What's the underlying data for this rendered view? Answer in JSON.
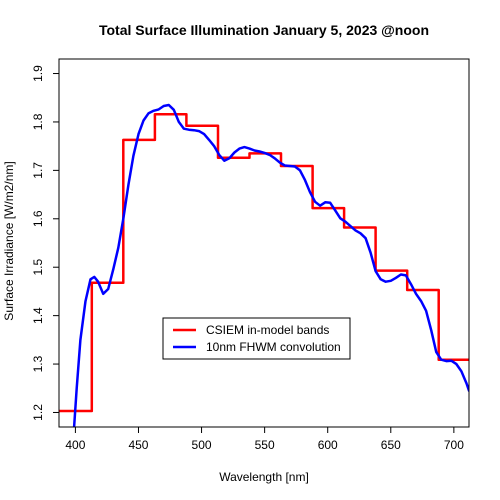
{
  "chart_data": {
    "type": "line",
    "title": "Total Surface Illumination January 5, 2023 @noon",
    "xlabel": "Wavelength [nm]",
    "ylabel": "Surface Irradiance [W/m2/nm]",
    "xlim": [
      387,
      712
    ],
    "ylim": [
      1.17,
      1.93
    ],
    "xticks": [
      400,
      450,
      500,
      550,
      600,
      650,
      700
    ],
    "yticks": [
      1.2,
      1.3,
      1.4,
      1.5,
      1.6,
      1.7,
      1.8,
      1.9
    ],
    "grid": false,
    "legend_position": "center-bottom",
    "series": [
      {
        "name": "CSIEM in-model bands",
        "color": "#ff0000",
        "style": "step",
        "x": [
          387,
          413,
          438,
          463,
          488,
          513,
          538,
          563,
          588,
          613,
          638,
          663,
          688,
          712
        ],
        "values": [
          1.203,
          1.468,
          1.763,
          1.816,
          1.792,
          1.726,
          1.735,
          1.709,
          1.622,
          1.582,
          1.493,
          1.453,
          1.309,
          1.309
        ]
      },
      {
        "name": "10nm FHWM convolution",
        "color": "#0000ff",
        "style": "line",
        "x": [
          399,
          401,
          404,
          408,
          412,
          415,
          418,
          422,
          426,
          430,
          434,
          438,
          442,
          446,
          450,
          454,
          458,
          462,
          466,
          470,
          474,
          478,
          482,
          486,
          490,
          494,
          498,
          502,
          506,
          510,
          514,
          518,
          522,
          526,
          530,
          534,
          538,
          542,
          546,
          550,
          554,
          558,
          562,
          566,
          570,
          574,
          578,
          582,
          586,
          590,
          594,
          598,
          602,
          606,
          610,
          614,
          618,
          622,
          626,
          630,
          634,
          638,
          642,
          646,
          650,
          654,
          658,
          662,
          666,
          670,
          674,
          678,
          682,
          686,
          690,
          694,
          698,
          702,
          706,
          710,
          712
        ],
        "values": [
          1.17,
          1.25,
          1.35,
          1.43,
          1.475,
          1.48,
          1.47,
          1.445,
          1.455,
          1.495,
          1.54,
          1.6,
          1.67,
          1.73,
          1.775,
          1.803,
          1.818,
          1.823,
          1.826,
          1.833,
          1.835,
          1.825,
          1.8,
          1.786,
          1.784,
          1.783,
          1.781,
          1.775,
          1.763,
          1.75,
          1.732,
          1.72,
          1.725,
          1.737,
          1.745,
          1.748,
          1.745,
          1.741,
          1.739,
          1.736,
          1.732,
          1.725,
          1.716,
          1.71,
          1.709,
          1.708,
          1.7,
          1.68,
          1.655,
          1.635,
          1.627,
          1.634,
          1.633,
          1.617,
          1.601,
          1.594,
          1.585,
          1.576,
          1.57,
          1.56,
          1.53,
          1.492,
          1.475,
          1.47,
          1.472,
          1.478,
          1.485,
          1.483,
          1.465,
          1.445,
          1.43,
          1.41,
          1.37,
          1.325,
          1.309,
          1.306,
          1.307,
          1.3,
          1.285,
          1.26,
          1.245
        ]
      }
    ]
  }
}
